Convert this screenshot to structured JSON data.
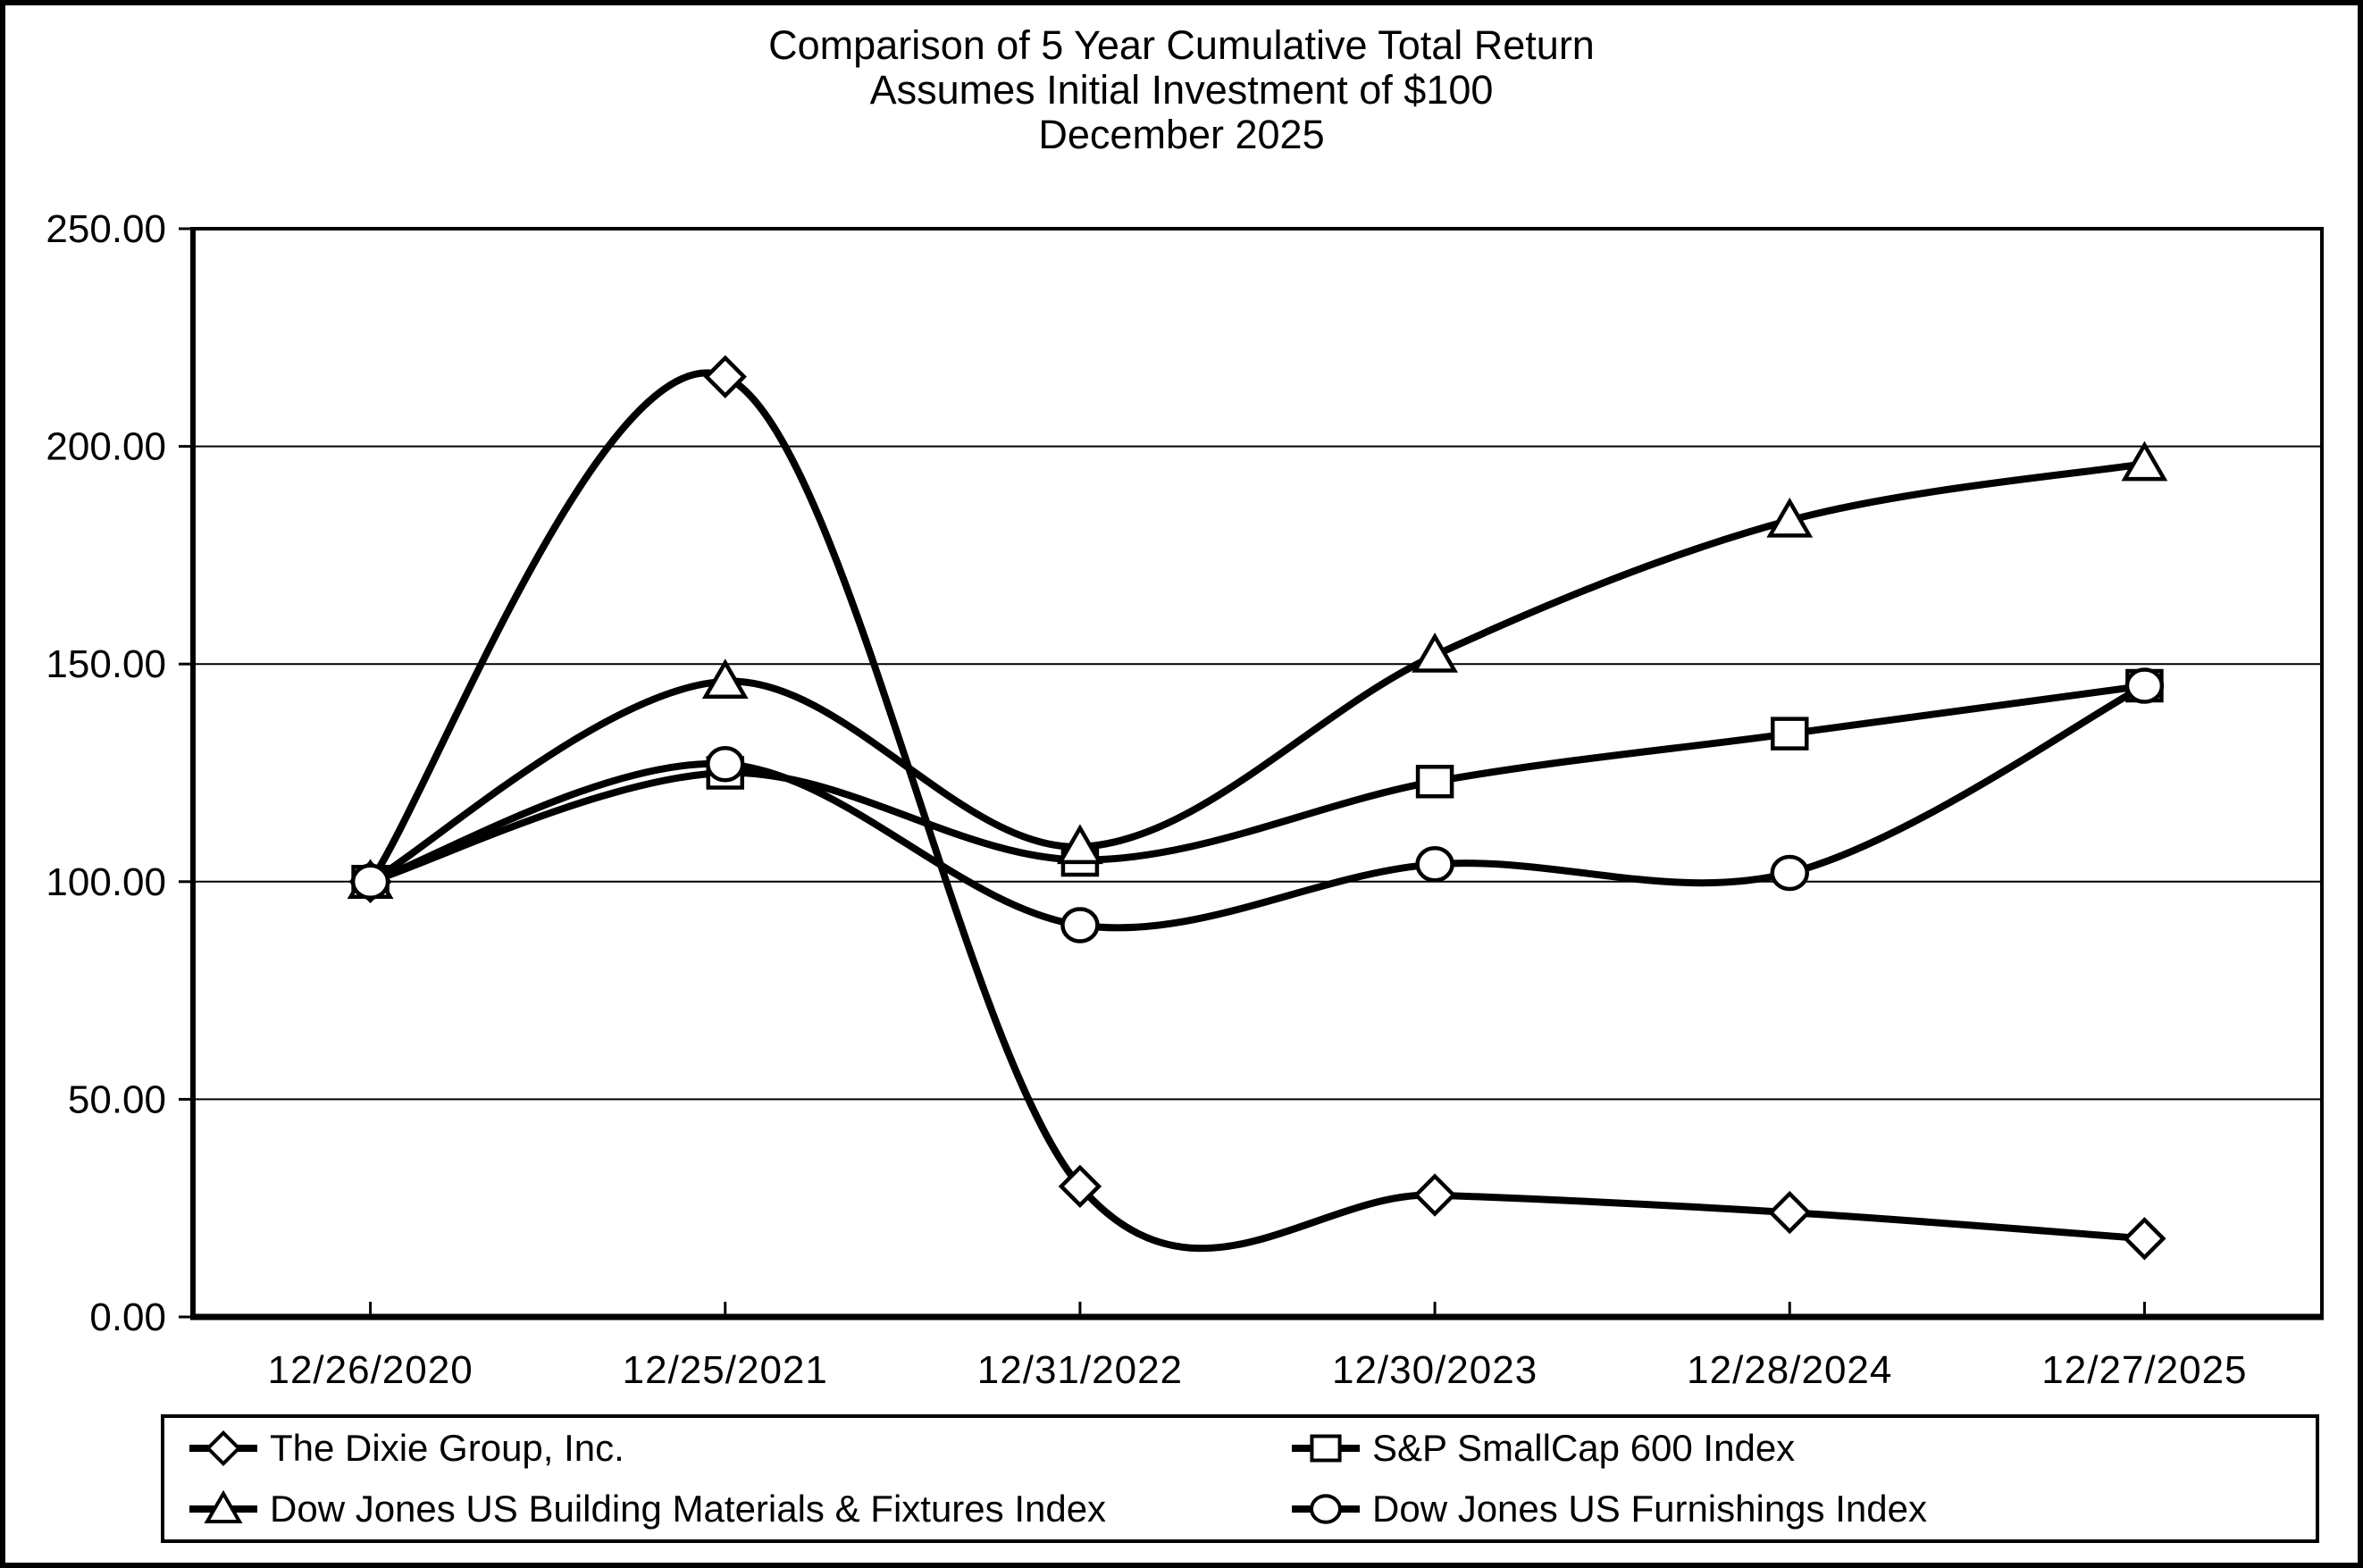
{
  "chart_data": {
    "type": "line",
    "title": "Comparison of 5 Year Cumulative Total Return",
    "subtitle": "Assumes Initial Investment of $100",
    "subtitle2": "December 2025",
    "categories": [
      "12/26/2020",
      "12/25/2021",
      "12/31/2022",
      "12/30/2023",
      "12/28/2024",
      "12/27/2025"
    ],
    "series": [
      {
        "name": "The Dixie Group, Inc.",
        "marker": "diamond",
        "values": [
          100,
          216,
          30,
          28,
          24,
          18
        ]
      },
      {
        "name": "S&P SmallCap 600 Index",
        "marker": "square",
        "values": [
          100,
          125,
          105,
          123,
          134,
          145
        ]
      },
      {
        "name": "Dow Jones US Building Materials & Fixtures Index",
        "marker": "triangle",
        "values": [
          100,
          146,
          108,
          152,
          183,
          196
        ]
      },
      {
        "name": "Dow Jones US Furnishings Index",
        "marker": "circle",
        "values": [
          100,
          127,
          90,
          104,
          102,
          145
        ]
      }
    ],
    "ylim": [
      0,
      250
    ],
    "y_ticks": [
      "0.00",
      "50.00",
      "100.00",
      "150.00",
      "200.00",
      "250.00"
    ],
    "xlabel": "",
    "ylabel": "",
    "grid": "horizontal",
    "smoothed": true,
    "line_color": "#000000",
    "marker_fill": "#ffffff",
    "legend_position": "bottom-box",
    "legend_layout": [
      "row1: series 0 | series 1",
      "row2: series 2 | series 3"
    ]
  }
}
